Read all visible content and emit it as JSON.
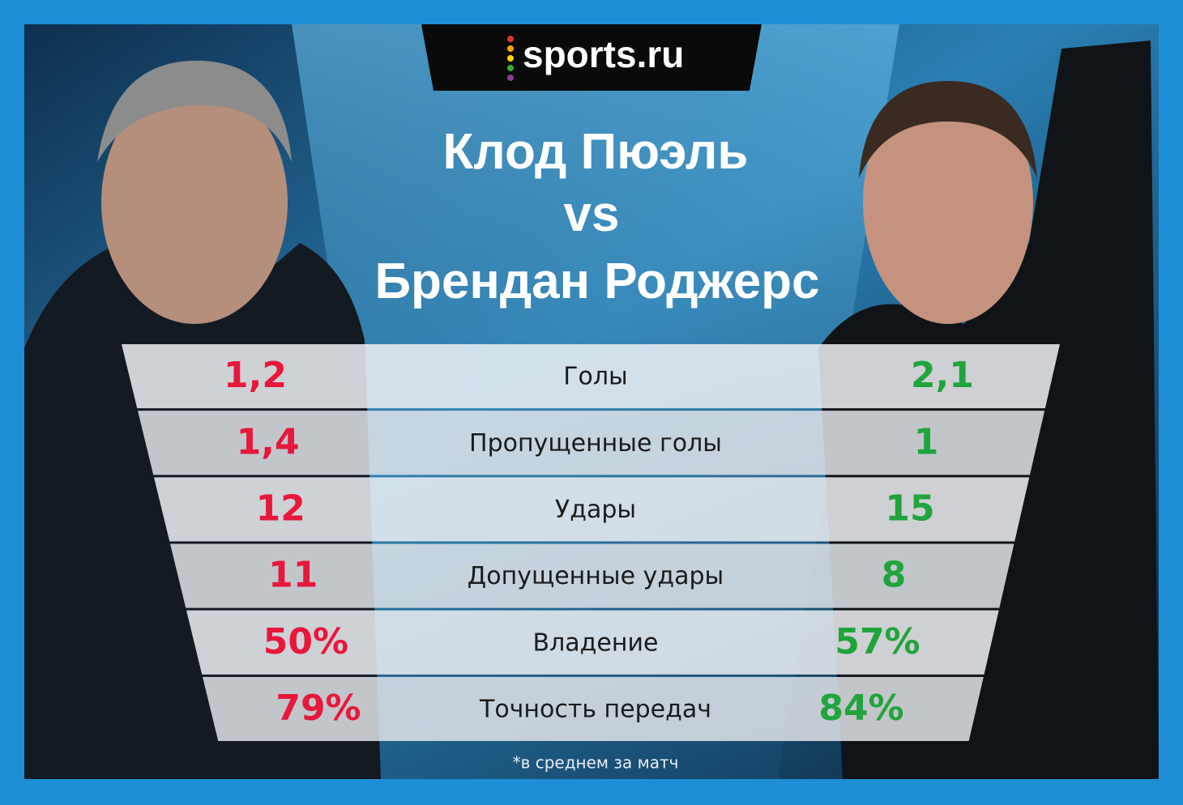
{
  "header": {
    "logo": "sports.ru",
    "title_line1": "Клод Пюэль",
    "title_vs": "vs",
    "title_line2": "Брендан Роджерс"
  },
  "table": {
    "rows": [
      [
        "1,2",
        "Голы",
        "2,1"
      ],
      [
        "1,4",
        "Пропущенные голы",
        "1"
      ],
      [
        "12",
        "Удары",
        "15"
      ],
      [
        "11",
        "Допущенные удары",
        "8"
      ],
      [
        "50%",
        "Владение",
        "57%"
      ],
      [
        "79%",
        "Точность передач",
        "84%"
      ]
    ]
  },
  "footnote": "*в среднем за матч"
}
